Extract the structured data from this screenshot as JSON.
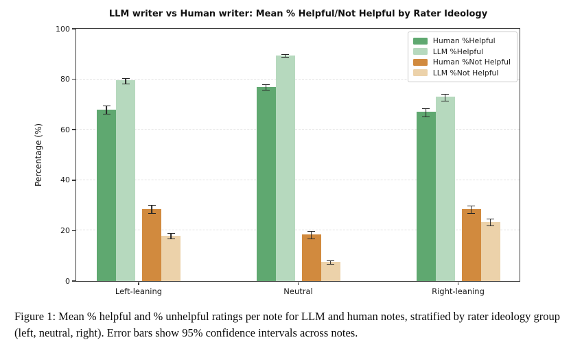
{
  "figure": {
    "caption": "Figure 1: Mean % helpful and % unhelpful ratings per note for LLM and human notes, stratified by rater ideology group (left, neutral, right). Error bars show 95% confidence intervals across notes."
  },
  "chart_data": {
    "type": "bar",
    "title": "LLM writer vs Human writer: Mean % Helpful/Not Helpful by Rater Ideology",
    "xlabel": "",
    "ylabel": "Percentage (%)",
    "ylim": [
      0,
      100
    ],
    "yticks": [
      0,
      20,
      40,
      60,
      80,
      100
    ],
    "categories": [
      "Left-leaning",
      "Neutral",
      "Right-leaning"
    ],
    "series": [
      {
        "name": "Human %Helpful",
        "color": "#5fa870",
        "values": [
          68,
          77,
          67
        ],
        "ci95": [
          2,
          1.5,
          2
        ]
      },
      {
        "name": "LLM %Helpful",
        "color": "#b6d9be",
        "values": [
          79.5,
          89.5,
          73
        ],
        "ci95": [
          1.5,
          1,
          1.7
        ]
      },
      {
        "name": "Human %Not Helpful",
        "color": "#d18a3e",
        "values": [
          28.5,
          18.5,
          28.5
        ],
        "ci95": [
          2,
          1.8,
          1.8
        ]
      },
      {
        "name": "LLM %Not Helpful",
        "color": "#ecd2aa",
        "values": [
          18,
          7.5,
          23.5
        ],
        "ci95": [
          1.5,
          1,
          1.8
        ]
      }
    ],
    "grid": "horizontal-dashed",
    "legend_position": "upper-right",
    "error_bars": "95% confidence intervals",
    "error_bar_color": "#262626"
  }
}
